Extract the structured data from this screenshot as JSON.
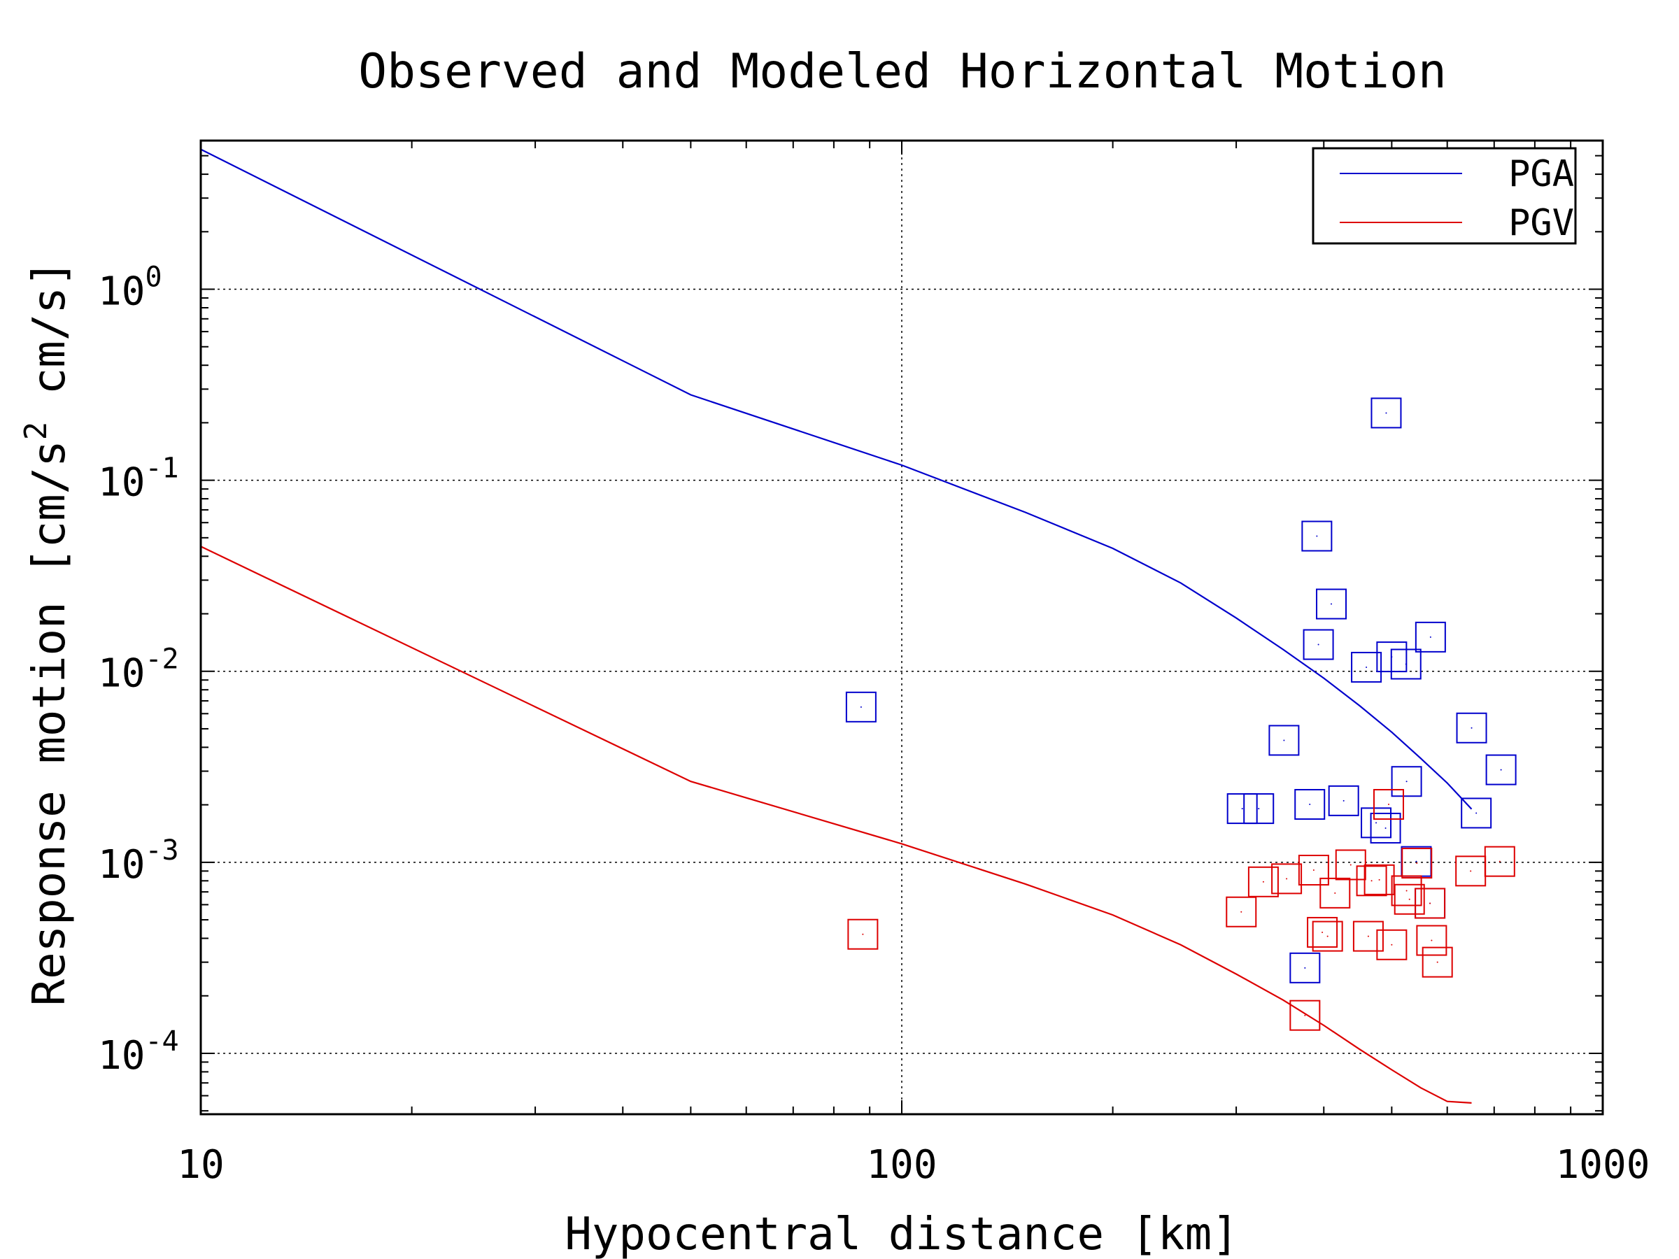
{
  "chart_data": {
    "type": "scatter",
    "title": "Observed and Modeled Horizontal Motion",
    "xlabel": "Hypocentral distance [km]",
    "ylabel_parts": [
      "Response motion  [cm/s",
      "2",
      "  cm/s]"
    ],
    "x_scale": "log",
    "y_scale": "log",
    "xlim": [
      10,
      1000
    ],
    "ylim": [
      4.8e-05,
      6
    ],
    "grid": true,
    "legend_position": "top-right",
    "x_ticks": [
      {
        "value": 10,
        "label": "10"
      },
      {
        "value": 100,
        "label": "100"
      },
      {
        "value": 1000,
        "label": "1000"
      }
    ],
    "y_ticks": [
      {
        "value": 1,
        "base": "10",
        "exp": "0"
      },
      {
        "value": 0.1,
        "base": "10",
        "exp": "-1"
      },
      {
        "value": 0.01,
        "base": "10",
        "exp": "-2"
      },
      {
        "value": 0.001,
        "base": "10",
        "exp": "-3"
      },
      {
        "value": 0.0001,
        "base": "10",
        "exp": "-4"
      }
    ],
    "series": [
      {
        "name": "PGA",
        "color": "#0000cc",
        "model_curve": [
          [
            10,
            5.4
          ],
          [
            50,
            0.28
          ],
          [
            100,
            0.12
          ],
          [
            150,
            0.068
          ],
          [
            200,
            0.044
          ],
          [
            250,
            0.029
          ],
          [
            300,
            0.019
          ],
          [
            350,
            0.013
          ],
          [
            400,
            0.0092
          ],
          [
            450,
            0.0066
          ],
          [
            500,
            0.0048
          ],
          [
            550,
            0.0035
          ],
          [
            600,
            0.0026
          ],
          [
            650,
            0.0019
          ]
        ],
        "observed": [
          [
            87.5,
            0.0065
          ],
          [
            491,
            0.225
          ],
          [
            391,
            0.051
          ],
          [
            410,
            0.0225
          ],
          [
            393,
            0.0138
          ],
          [
            460,
            0.0105
          ],
          [
            500,
            0.0119
          ],
          [
            524,
            0.0109
          ],
          [
            568,
            0.0151
          ],
          [
            650,
            0.00505
          ],
          [
            716,
            0.00305
          ],
          [
            525,
            0.00265
          ],
          [
            351,
            0.00435
          ],
          [
            382,
            0.00201
          ],
          [
            427,
            0.0021
          ],
          [
            306,
            0.00191
          ],
          [
            323,
            0.00191
          ],
          [
            475,
            0.00161
          ],
          [
            490,
            0.00151
          ],
          [
            660,
            0.00181
          ],
          [
            542,
            0.00101
          ],
          [
            567,
            0.00061
          ],
          [
            376,
            0.00028
          ]
        ]
      },
      {
        "name": "PGV",
        "color": "#dd0000",
        "model_curve": [
          [
            10,
            0.045
          ],
          [
            50,
            0.00265
          ],
          [
            100,
            0.00125
          ],
          [
            150,
            0.00077
          ],
          [
            200,
            0.00053
          ],
          [
            250,
            0.00037
          ],
          [
            300,
            0.00026
          ],
          [
            350,
            0.00019
          ],
          [
            400,
            0.00014
          ],
          [
            450,
            0.000105
          ],
          [
            500,
            8.2e-05
          ],
          [
            550,
            6.6e-05
          ],
          [
            600,
            5.6e-05
          ],
          [
            650,
            5.5e-05
          ]
        ],
        "observed": [
          [
            88,
            0.00042
          ],
          [
            305,
            0.00055
          ],
          [
            328,
            0.00079
          ],
          [
            354,
            0.00082
          ],
          [
            387,
            0.00091
          ],
          [
            398,
            0.00043
          ],
          [
            405,
            0.00041
          ],
          [
            415,
            0.00069
          ],
          [
            437,
            0.00097
          ],
          [
            463,
            0.00041
          ],
          [
            468,
            0.0008
          ],
          [
            480,
            0.00081
          ],
          [
            495,
            0.00201
          ],
          [
            500,
            0.00037
          ],
          [
            525,
            0.00071
          ],
          [
            530,
            0.00064
          ],
          [
            543,
            0.00099
          ],
          [
            567,
            0.00061
          ],
          [
            570,
            0.00039
          ],
          [
            581,
            0.0003
          ],
          [
            648,
            0.0009
          ],
          [
            713,
            0.00101
          ],
          [
            376,
            0.000158
          ]
        ]
      }
    ]
  }
}
